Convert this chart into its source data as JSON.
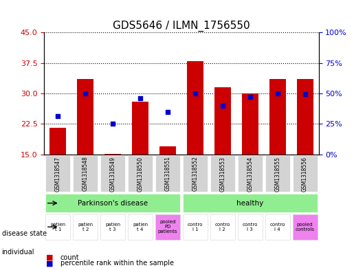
{
  "title": "GDS5646 / ILMN_1756550",
  "samples": [
    "GSM1318547",
    "GSM1318548",
    "GSM1318549",
    "GSM1318550",
    "GSM1318551",
    "GSM1318552",
    "GSM1318553",
    "GSM1318554",
    "GSM1318555",
    "GSM1318556"
  ],
  "red_values": [
    21.5,
    33.5,
    15.2,
    28.0,
    17.0,
    38.0,
    31.5,
    30.0,
    33.5,
    33.5
  ],
  "blue_values": [
    24.5,
    30.0,
    22.5,
    28.8,
    25.5,
    30.0,
    27.0,
    29.2,
    30.0,
    29.8
  ],
  "red_base": 15,
  "ylim_left": [
    15,
    45
  ],
  "ylim_right": [
    0,
    100
  ],
  "yticks_left": [
    15,
    22.5,
    30,
    37.5,
    45
  ],
  "yticks_right": [
    0,
    25,
    50,
    75,
    100
  ],
  "red_color": "#cc0000",
  "blue_color": "#0000cc",
  "bar_width": 0.6,
  "disease_state_groups": [
    {
      "label": "Parkinson's disease",
      "start": 0,
      "end": 4,
      "color": "#90ee90"
    },
    {
      "label": "healthy",
      "start": 5,
      "end": 9,
      "color": "#90ee90"
    }
  ],
  "individual_labels": [
    {
      "lines": [
        "patien",
        "t 1"
      ],
      "color": "#ffffff",
      "span": [
        0,
        0
      ]
    },
    {
      "lines": [
        "patien",
        "t 2"
      ],
      "color": "#ffffff",
      "span": [
        1,
        1
      ]
    },
    {
      "lines": [
        "patien",
        "t 3"
      ],
      "color": "#ffffff",
      "span": [
        2,
        2
      ]
    },
    {
      "lines": [
        "patien",
        "t 4"
      ],
      "color": "#ffffff",
      "span": [
        3,
        3
      ]
    },
    {
      "lines": [
        "pooled",
        "PD",
        "patients"
      ],
      "color": "#ffaaff",
      "span": [
        4,
        4
      ]
    },
    {
      "lines": [
        "contro",
        "l",
        "1"
      ],
      "color": "#ffffff",
      "span": [
        5,
        5
      ]
    },
    {
      "lines": [
        "contro",
        "l",
        "2"
      ],
      "color": "#ffffff",
      "span": [
        6,
        6
      ]
    },
    {
      "lines": [
        "contro",
        "l",
        "3"
      ],
      "color": "#ffffff",
      "span": [
        7,
        7
      ]
    },
    {
      "lines": [
        "contro",
        "l",
        "4"
      ],
      "color": "#ffffff",
      "span": [
        8,
        8
      ]
    },
    {
      "lines": [
        "pooled",
        "controls"
      ],
      "color": "#ffaaff",
      "span": [
        9,
        9
      ]
    }
  ],
  "xticklabel_bg": "#d3d3d3",
  "disease_parkinsons_bg": "#90ee90",
  "disease_healthy_bg": "#90ee90",
  "pooled_bg": "#ee82ee",
  "normal_individual_bg": "#ffffff",
  "left_arrow_label_disease": "disease state",
  "left_arrow_label_individual": "individual",
  "grid_style": "dotted",
  "grid_color": "#000000",
  "legend_count_color": "#cc0000",
  "legend_pct_color": "#0000cc"
}
